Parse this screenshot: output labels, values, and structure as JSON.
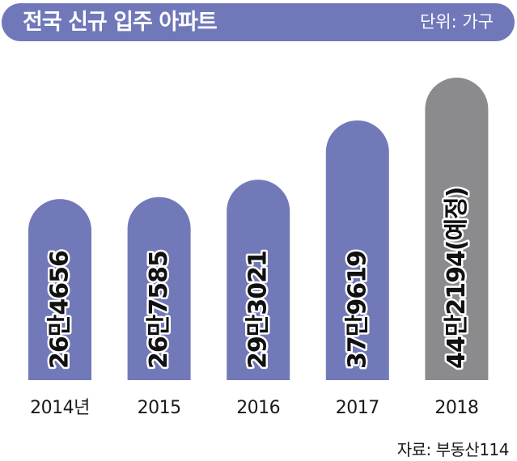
{
  "header": {
    "title": "전국 신규 입주 아파트",
    "unit": "단위: 가구"
  },
  "source": "자료: 부동산114",
  "colors": {
    "header": "#7078ba",
    "actual": "#7279b9",
    "forecast": "#8b8b8d",
    "label": "#111111"
  },
  "chart_data": {
    "type": "bar",
    "title": "전국 신규 입주 아파트",
    "unit": "단위: 가구",
    "categories": [
      "2014년",
      "2015",
      "2016",
      "2017",
      "2018"
    ],
    "values": [
      264656,
      267585,
      293021,
      379619,
      442194
    ],
    "labels": [
      "26만4656",
      "26만7585",
      "29만3021",
      "37만9619",
      "44만2194(예정)"
    ],
    "forecast": [
      false,
      false,
      false,
      false,
      true
    ],
    "ylim": [
      0,
      442194
    ],
    "grid": false,
    "legend": "none"
  }
}
